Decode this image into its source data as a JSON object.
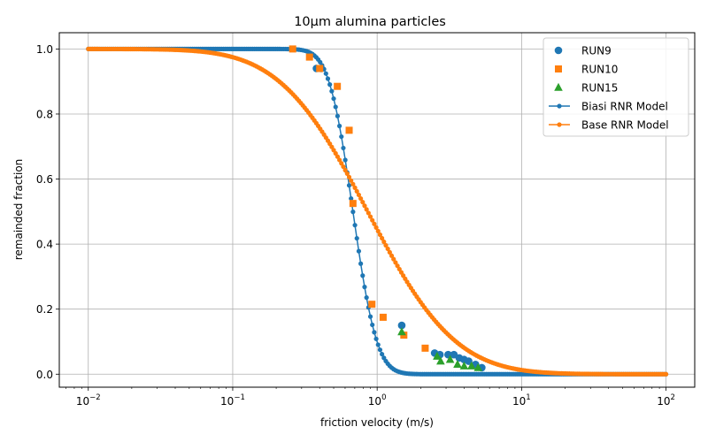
{
  "chart_data": {
    "type": "scatter",
    "title": "10µm alumina particles",
    "xlabel": "friction velocity (m/s)",
    "ylabel": "remainded fraction",
    "xscale": "log",
    "xlim": [
      0.0063,
      158
    ],
    "ylim": [
      -0.04,
      1.05
    ],
    "grid": true,
    "legend_position": "top-right",
    "x_ticks": [
      {
        "value": 0.01,
        "base": "10",
        "exp": "−2"
      },
      {
        "value": 0.1,
        "base": "10",
        "exp": "−1"
      },
      {
        "value": 1,
        "base": "10",
        "exp": "0"
      },
      {
        "value": 10,
        "base": "10",
        "exp": "1"
      },
      {
        "value": 100,
        "base": "10",
        "exp": "2"
      }
    ],
    "y_ticks": [
      "0.0",
      "0.2",
      "0.4",
      "0.6",
      "0.8",
      "1.0"
    ],
    "colors": {
      "blue": "#1f77b4",
      "orange": "#ff7f0e",
      "green": "#2ca02c",
      "grid": "#b0b0b0"
    },
    "scatter_series": [
      {
        "name": "RUN9",
        "marker": "circle",
        "color": "#1f77b4",
        "x": [
          0.38,
          0.41,
          1.48,
          2.5,
          2.72,
          3.1,
          3.4,
          3.7,
          4.0,
          4.3,
          4.8,
          5.3
        ],
        "y": [
          0.94,
          0.94,
          0.15,
          0.065,
          0.06,
          0.06,
          0.06,
          0.05,
          0.045,
          0.04,
          0.03,
          0.02
        ]
      },
      {
        "name": "RUN10",
        "marker": "square",
        "color": "#ff7f0e",
        "x": [
          0.26,
          0.34,
          0.4,
          0.53,
          0.64,
          0.68,
          0.92,
          1.1,
          1.53,
          2.15
        ],
        "y": [
          1.0,
          0.975,
          0.94,
          0.885,
          0.75,
          0.525,
          0.215,
          0.175,
          0.12,
          0.08
        ]
      },
      {
        "name": "RUN15",
        "marker": "triangle",
        "color": "#2ca02c",
        "x": [
          1.48,
          2.6,
          2.75,
          3.2,
          3.6,
          4.0,
          4.5,
          5.0
        ],
        "y": [
          0.13,
          0.055,
          0.04,
          0.045,
          0.03,
          0.025,
          0.025,
          0.02
        ]
      }
    ],
    "model_series": [
      {
        "name": "Biasi RNR Model",
        "color": "#1f77b4",
        "x_start": 0.01,
        "x_end": 100,
        "points": 300,
        "median": 0.68,
        "sigma": 0.3
      },
      {
        "name": "Base RNR Model",
        "color": "#ff7f0e",
        "x_start": 0.01,
        "x_end": 100,
        "points": 300,
        "median": 0.86,
        "sigma": 1.1
      }
    ]
  }
}
